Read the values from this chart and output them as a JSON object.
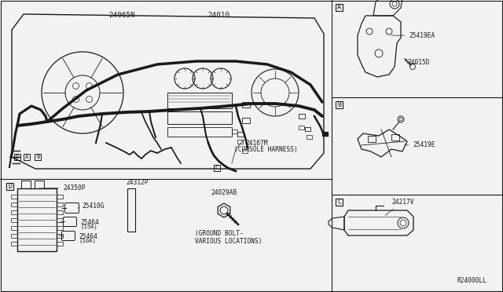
{
  "bg_color": "#f2f2f2",
  "line_color": "#1a1a1a",
  "text_color": "#1a1a1a",
  "labels": {
    "main_label1": "24065N",
    "main_label2": "24010",
    "console_harness_num": "24167M",
    "console_harness_text": "(CONSOLE HARNESS)",
    "part_A_1": "25419EA",
    "part_A_2": "24015D",
    "part_B": "25419E",
    "part_C": "24217V",
    "part_D_1": "24350P",
    "part_D_2": "24312P",
    "part_D_3": "25410G",
    "part_D_4a": "25464",
    "part_D_4a_sub": "(15A)",
    "part_D_4b": "25464",
    "part_D_4b_sub": "(10A)",
    "part_E": "24029AB",
    "ground_text1": "(GROUND BOLT-",
    "ground_text2": "VARIOUS LOCATIONS)",
    "ref_code": "R24000LL",
    "box_A": "A",
    "box_B": "B",
    "box_C": "C",
    "box_D": "D",
    "small_A": "A",
    "small_B": "B",
    "small_D": "D"
  },
  "layout": {
    "vx": 422,
    "hy_main": 228,
    "hy_A": 124,
    "hy_B": 248
  }
}
